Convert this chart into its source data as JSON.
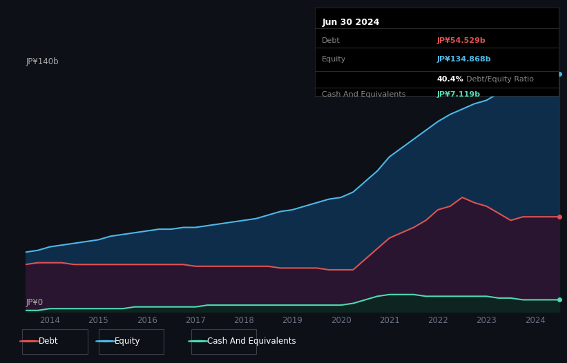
{
  "bg_color": "#0d1117",
  "chart_bg": "#0d1117",
  "debt_color": "#e05252",
  "equity_color": "#4db8e8",
  "cash_color": "#4ddbb4",
  "equity_fill": "#0e2d4a",
  "debt_fill": "#2a1530",
  "cash_fill": "#0d2420",
  "grid_color": "#1e2535",
  "ylabel_top": "JP¥140b",
  "ylabel_bottom": "JP¥0",
  "years": [
    2013.5,
    2013.75,
    2014.0,
    2014.25,
    2014.5,
    2014.75,
    2015.0,
    2015.25,
    2015.5,
    2015.75,
    2016.0,
    2016.25,
    2016.5,
    2016.75,
    2017.0,
    2017.25,
    2017.5,
    2017.75,
    2018.0,
    2018.25,
    2018.5,
    2018.75,
    2019.0,
    2019.25,
    2019.5,
    2019.75,
    2020.0,
    2020.25,
    2020.5,
    2020.75,
    2021.0,
    2021.25,
    2021.5,
    2021.75,
    2022.0,
    2022.25,
    2022.5,
    2022.75,
    2023.0,
    2023.25,
    2023.5,
    2023.75,
    2024.0,
    2024.25,
    2024.5
  ],
  "equity": [
    34,
    35,
    37,
    38,
    39,
    40,
    41,
    43,
    44,
    45,
    46,
    47,
    47,
    48,
    48,
    49,
    50,
    51,
    52,
    53,
    55,
    57,
    58,
    60,
    62,
    64,
    65,
    68,
    74,
    80,
    88,
    93,
    98,
    103,
    108,
    112,
    115,
    118,
    120,
    124,
    126,
    127,
    128,
    133,
    135
  ],
  "debt": [
    27,
    28,
    28,
    28,
    27,
    27,
    27,
    27,
    27,
    27,
    27,
    27,
    27,
    27,
    26,
    26,
    26,
    26,
    26,
    26,
    26,
    25,
    25,
    25,
    25,
    24,
    24,
    24,
    30,
    36,
    42,
    45,
    48,
    52,
    58,
    60,
    65,
    62,
    60,
    56,
    52,
    54,
    54,
    54,
    54
  ],
  "cash": [
    1,
    1,
    2,
    2,
    2,
    2,
    2,
    2,
    2,
    3,
    3,
    3,
    3,
    3,
    3,
    4,
    4,
    4,
    4,
    4,
    4,
    4,
    4,
    4,
    4,
    4,
    4,
    5,
    7,
    9,
    10,
    10,
    10,
    9,
    9,
    9,
    9,
    9,
    9,
    8,
    8,
    7,
    7,
    7,
    7
  ],
  "x_ticks": [
    2014,
    2015,
    2016,
    2017,
    2018,
    2019,
    2020,
    2021,
    2022,
    2023,
    2024
  ],
  "x_min": 2013.5,
  "x_max": 2024.6,
  "y_min": 0,
  "y_max": 148,
  "tooltip_date": "Jun 30 2024",
  "tooltip_debt_label": "Debt",
  "tooltip_debt_value": "JP¥54.529b",
  "tooltip_equity_label": "Equity",
  "tooltip_equity_value": "JP¥134.868b",
  "tooltip_ratio": "40.4%",
  "tooltip_ratio_label": "Debt/Equity Ratio",
  "tooltip_cash_label": "Cash And Equivalents",
  "tooltip_cash_value": "JP¥7.119b",
  "legend_items": [
    {
      "label": "Debt",
      "color": "#e05252"
    },
    {
      "label": "Equity",
      "color": "#4db8e8"
    },
    {
      "label": "Cash And Equivalents",
      "color": "#4ddbb4"
    }
  ]
}
